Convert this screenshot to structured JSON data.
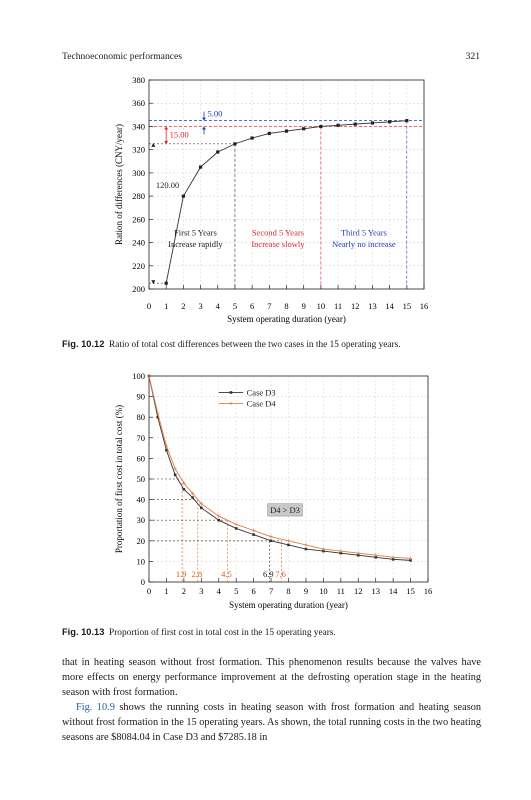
{
  "header": {
    "section": "Technoeconomic performances",
    "page": "321"
  },
  "fig12": {
    "caption_label": "Fig. 10.12",
    "caption_text": "Ratio of total cost differences between the two cases in the 15 operating years.",
    "chart_data": {
      "type": "line",
      "xlabel": "System operating duration (year)",
      "ylabel": "Ration of differences (CNY/year)",
      "xlim": [
        0,
        16
      ],
      "ylim": [
        200,
        380
      ],
      "xticks": [
        0,
        1,
        2,
        3,
        4,
        5,
        6,
        7,
        8,
        9,
        10,
        11,
        12,
        13,
        14,
        15,
        16
      ],
      "yticks": [
        200,
        220,
        240,
        260,
        280,
        300,
        320,
        340,
        360,
        380
      ],
      "x": [
        1,
        2,
        3,
        4,
        5,
        6,
        7,
        8,
        9,
        10,
        11,
        12,
        13,
        14,
        15
      ],
      "y": [
        205,
        280,
        305,
        318,
        325,
        330,
        334,
        336,
        338,
        340,
        341,
        342,
        343,
        344,
        345
      ],
      "annotations": {
        "v500": "5.00",
        "v1500": "15.00",
        "v12000": "120.00",
        "region1_l1": "First 5 Years",
        "region1_l2": "Increase rapidly",
        "region2_l1": "Second 5 Years",
        "region2_l2": "Increase slowly",
        "region3_l1": "Third 5 Years",
        "region3_l2": "Nearly no increase"
      },
      "colors": {
        "line": "#333333",
        "red": "#e0242b",
        "blue": "#1f3fbf"
      }
    }
  },
  "fig13": {
    "caption_label": "Fig. 10.13",
    "caption_text": "Proportion of first cost in total cost in the 15 operating years.",
    "chart_data": {
      "type": "line",
      "xlabel": "System operating duration (year)",
      "ylabel": "Proportation of first cost in total cost (%)",
      "xlim": [
        0,
        16
      ],
      "ylim": [
        0,
        100
      ],
      "xticks": [
        0,
        1,
        2,
        3,
        4,
        5,
        6,
        7,
        8,
        9,
        10,
        11,
        12,
        13,
        14,
        15,
        16
      ],
      "yticks": [
        0,
        10,
        20,
        30,
        40,
        50,
        60,
        70,
        80,
        90,
        100
      ],
      "series": [
        {
          "name": "Case D3",
          "x": [
            0,
            0.5,
            1,
            1.5,
            2,
            2.5,
            3,
            4,
            5,
            6,
            7,
            8,
            9,
            10,
            11,
            12,
            13,
            14,
            15
          ],
          "y": [
            100,
            80,
            64,
            52,
            45,
            41,
            36,
            30,
            26,
            23,
            20,
            18,
            16,
            15,
            14,
            13,
            12,
            11,
            10.5
          ],
          "color": "#333333"
        },
        {
          "name": "Case D4",
          "x": [
            0,
            0.5,
            1,
            1.5,
            2,
            2.5,
            3,
            4,
            5,
            6,
            7,
            8,
            9,
            10,
            11,
            12,
            13,
            14,
            15
          ],
          "y": [
            100,
            82,
            66,
            55,
            48,
            43,
            38,
            32,
            28,
            25,
            22,
            20,
            18,
            16,
            15,
            14,
            13,
            12,
            11.5
          ],
          "color": "#e57b4a"
        }
      ],
      "box_label": "D4 > D3",
      "markers": [
        {
          "x": 1.9,
          "y": 50,
          "label": "1.9",
          "color": "#e05a1c"
        },
        {
          "x": 2.8,
          "y": 40,
          "label": "2.8",
          "color": "#e05a1c"
        },
        {
          "x": 4.5,
          "y": 30,
          "label": "4.5",
          "color": "#e05a1c"
        },
        {
          "x": 6.9,
          "y": 20,
          "label": "6.9",
          "color": "#222222"
        },
        {
          "x": 7.6,
          "y": 20,
          "label": "7.6",
          "color": "#e05a1c"
        }
      ]
    }
  },
  "body": {
    "p1": "that in heating season without frost formation. This phenomenon results because the valves have more effects on energy performance improvement at the defrosting operation stage in the heating season with frost formation.",
    "p2_ref": "Fig. 10.9",
    "p2_rest": " shows the running costs in heating season with frost formation and heating season without frost formation in the 15 operating years. As shown, the total running costs in the two heating seasons are $8084.04 in Case D3 and $7285.18 in"
  }
}
